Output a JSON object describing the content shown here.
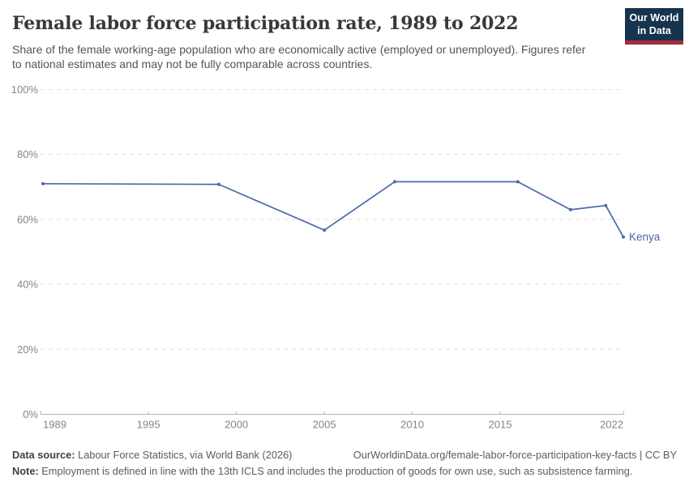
{
  "page": {
    "background": "#ffffff"
  },
  "header": {
    "title": "Female labor force participation rate, 1989 to 2022",
    "subtitle": "Share of the female working-age population who are economically active (employed or unemployed). Figures refer to national estimates and may not be fully comparable across countries.",
    "logo": {
      "line1": "Our World",
      "line2": "in Data",
      "bg_color": "#16344e",
      "stripe_color": "#a62b3d",
      "text_color": "#ffffff"
    }
  },
  "chart_data": {
    "type": "line",
    "title": "Female labor force participation rate, 1989 to 2022",
    "xlabel": "",
    "ylabel": "",
    "x": {
      "min": 1989,
      "max": 2022,
      "ticks": [
        1989,
        1995,
        2000,
        2005,
        2010,
        2015,
        2022
      ]
    },
    "y": {
      "min": 0,
      "max": 100,
      "ticks": [
        0,
        20,
        40,
        60,
        80,
        100
      ],
      "suffix": "%"
    },
    "grid": {
      "horizontal": true,
      "style": "dashed",
      "color": "#e0e0e0"
    },
    "axis_color": "#b3b3b3",
    "legend_position": "end-of-line",
    "series": [
      {
        "name": "Kenya",
        "color": "#4a69a8",
        "x": [
          1989,
          1999,
          2005,
          2009,
          2016,
          2019,
          2021,
          2022
        ],
        "values": [
          71.0,
          70.8,
          56.7,
          71.6,
          71.6,
          63.0,
          64.3,
          54.6
        ]
      }
    ]
  },
  "footer": {
    "data_source_label": "Data source:",
    "data_source_text": "Labour Force Statistics, via World Bank (2026)",
    "attribution": "OurWorldinData.org/female-labor-force-participation-key-facts | CC BY",
    "note_label": "Note:",
    "note_text": "Employment is defined in line with the 13th ICLS and includes the production of goods for own use, such as subsistence farming."
  }
}
